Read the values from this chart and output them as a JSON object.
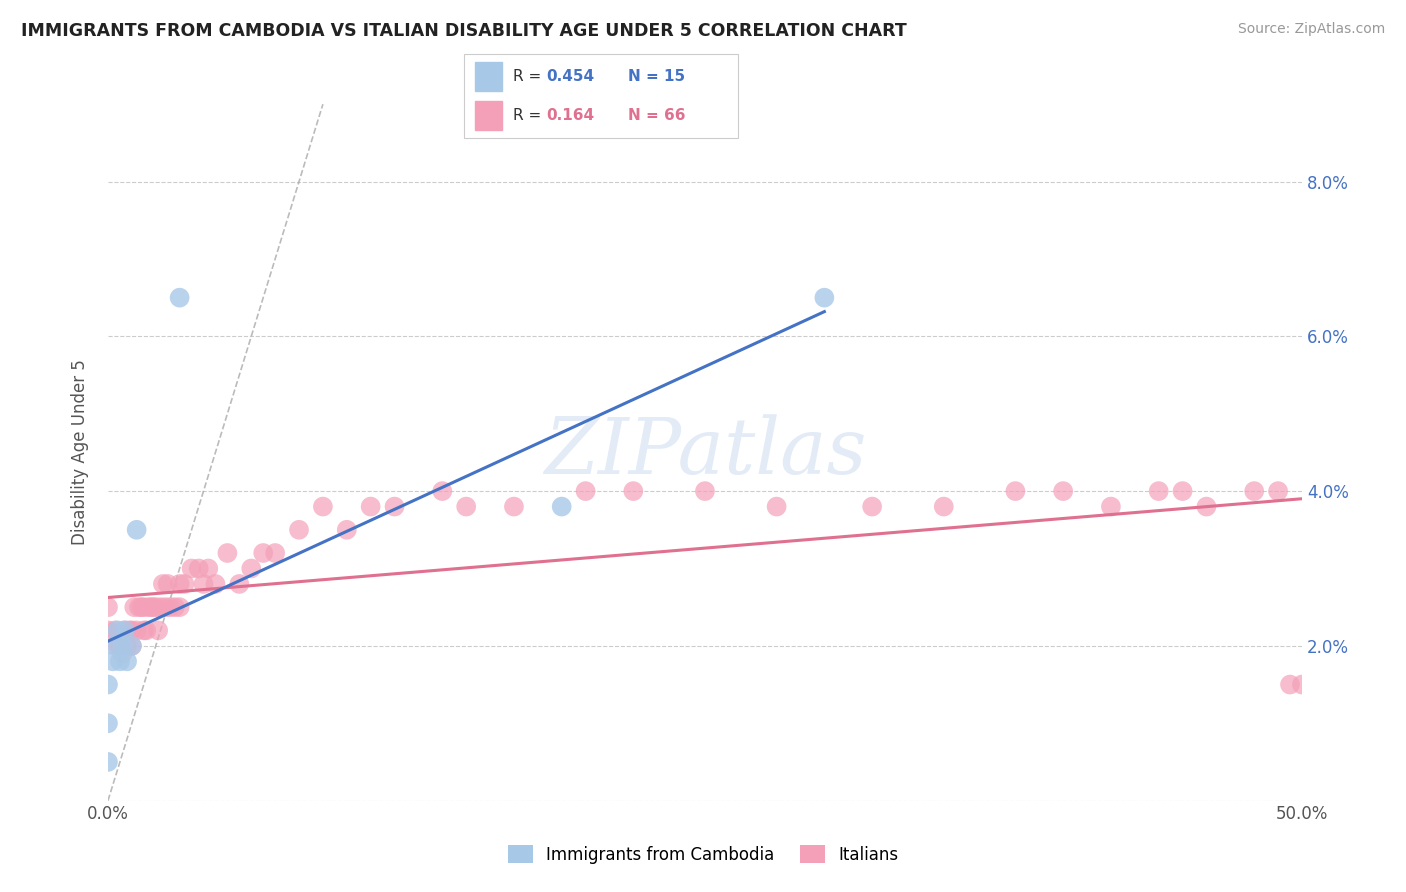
{
  "title": "IMMIGRANTS FROM CAMBODIA VS ITALIAN DISABILITY AGE UNDER 5 CORRELATION CHART",
  "source": "Source: ZipAtlas.com",
  "ylabel": "Disability Age Under 5",
  "xlim": [
    0.0,
    0.5
  ],
  "ylim": [
    0.0,
    0.09
  ],
  "ytick_vals": [
    0.0,
    0.02,
    0.04,
    0.06,
    0.08
  ],
  "ytick_labels": [
    "",
    "2.0%",
    "4.0%",
    "6.0%",
    "8.0%"
  ],
  "xtick_vals": [
    0.0,
    0.1,
    0.2,
    0.3,
    0.4,
    0.5
  ],
  "xtick_labels": [
    "0.0%",
    "",
    "",
    "",
    "",
    "50.0%"
  ],
  "grid_color": "#cccccc",
  "background_color": "#ffffff",
  "legend_r1": "0.454",
  "legend_n1": "15",
  "legend_r2": "0.164",
  "legend_n2": "66",
  "color_blue": "#a8c8e8",
  "color_pink": "#f4a0b8",
  "color_blue_line": "#4472c4",
  "color_pink_line": "#e07090",
  "color_diag": "#aaaaaa",
  "ytick_color": "#4472c4",
  "cambodia_x": [
    0.0,
    0.0,
    0.0,
    0.002,
    0.003,
    0.004,
    0.005,
    0.006,
    0.007,
    0.008,
    0.01,
    0.012,
    0.03,
    0.19,
    0.3
  ],
  "cambodia_y": [
    0.005,
    0.01,
    0.015,
    0.018,
    0.02,
    0.022,
    0.018,
    0.02,
    0.022,
    0.018,
    0.02,
    0.035,
    0.065,
    0.038,
    0.065
  ],
  "italian_x": [
    0.0,
    0.0,
    0.003,
    0.004,
    0.005,
    0.006,
    0.007,
    0.008,
    0.009,
    0.01,
    0.01,
    0.011,
    0.012,
    0.013,
    0.014,
    0.015,
    0.015,
    0.016,
    0.017,
    0.018,
    0.019,
    0.02,
    0.021,
    0.022,
    0.023,
    0.024,
    0.025,
    0.026,
    0.028,
    0.03,
    0.03,
    0.032,
    0.035,
    0.038,
    0.04,
    0.042,
    0.045,
    0.05,
    0.055,
    0.06,
    0.065,
    0.07,
    0.08,
    0.09,
    0.1,
    0.11,
    0.12,
    0.14,
    0.15,
    0.17,
    0.2,
    0.22,
    0.25,
    0.28,
    0.32,
    0.35,
    0.38,
    0.4,
    0.42,
    0.44,
    0.45,
    0.46,
    0.48,
    0.49,
    0.495,
    0.5
  ],
  "italian_y": [
    0.025,
    0.022,
    0.022,
    0.02,
    0.02,
    0.019,
    0.022,
    0.02,
    0.022,
    0.02,
    0.022,
    0.025,
    0.022,
    0.025,
    0.025,
    0.022,
    0.025,
    0.022,
    0.025,
    0.025,
    0.025,
    0.025,
    0.022,
    0.025,
    0.028,
    0.025,
    0.028,
    0.025,
    0.025,
    0.028,
    0.025,
    0.028,
    0.03,
    0.03,
    0.028,
    0.03,
    0.028,
    0.032,
    0.028,
    0.03,
    0.032,
    0.032,
    0.035,
    0.038,
    0.035,
    0.038,
    0.038,
    0.04,
    0.038,
    0.038,
    0.04,
    0.04,
    0.04,
    0.038,
    0.038,
    0.038,
    0.04,
    0.04,
    0.038,
    0.04,
    0.04,
    0.038,
    0.04,
    0.04,
    0.015,
    0.015
  ]
}
